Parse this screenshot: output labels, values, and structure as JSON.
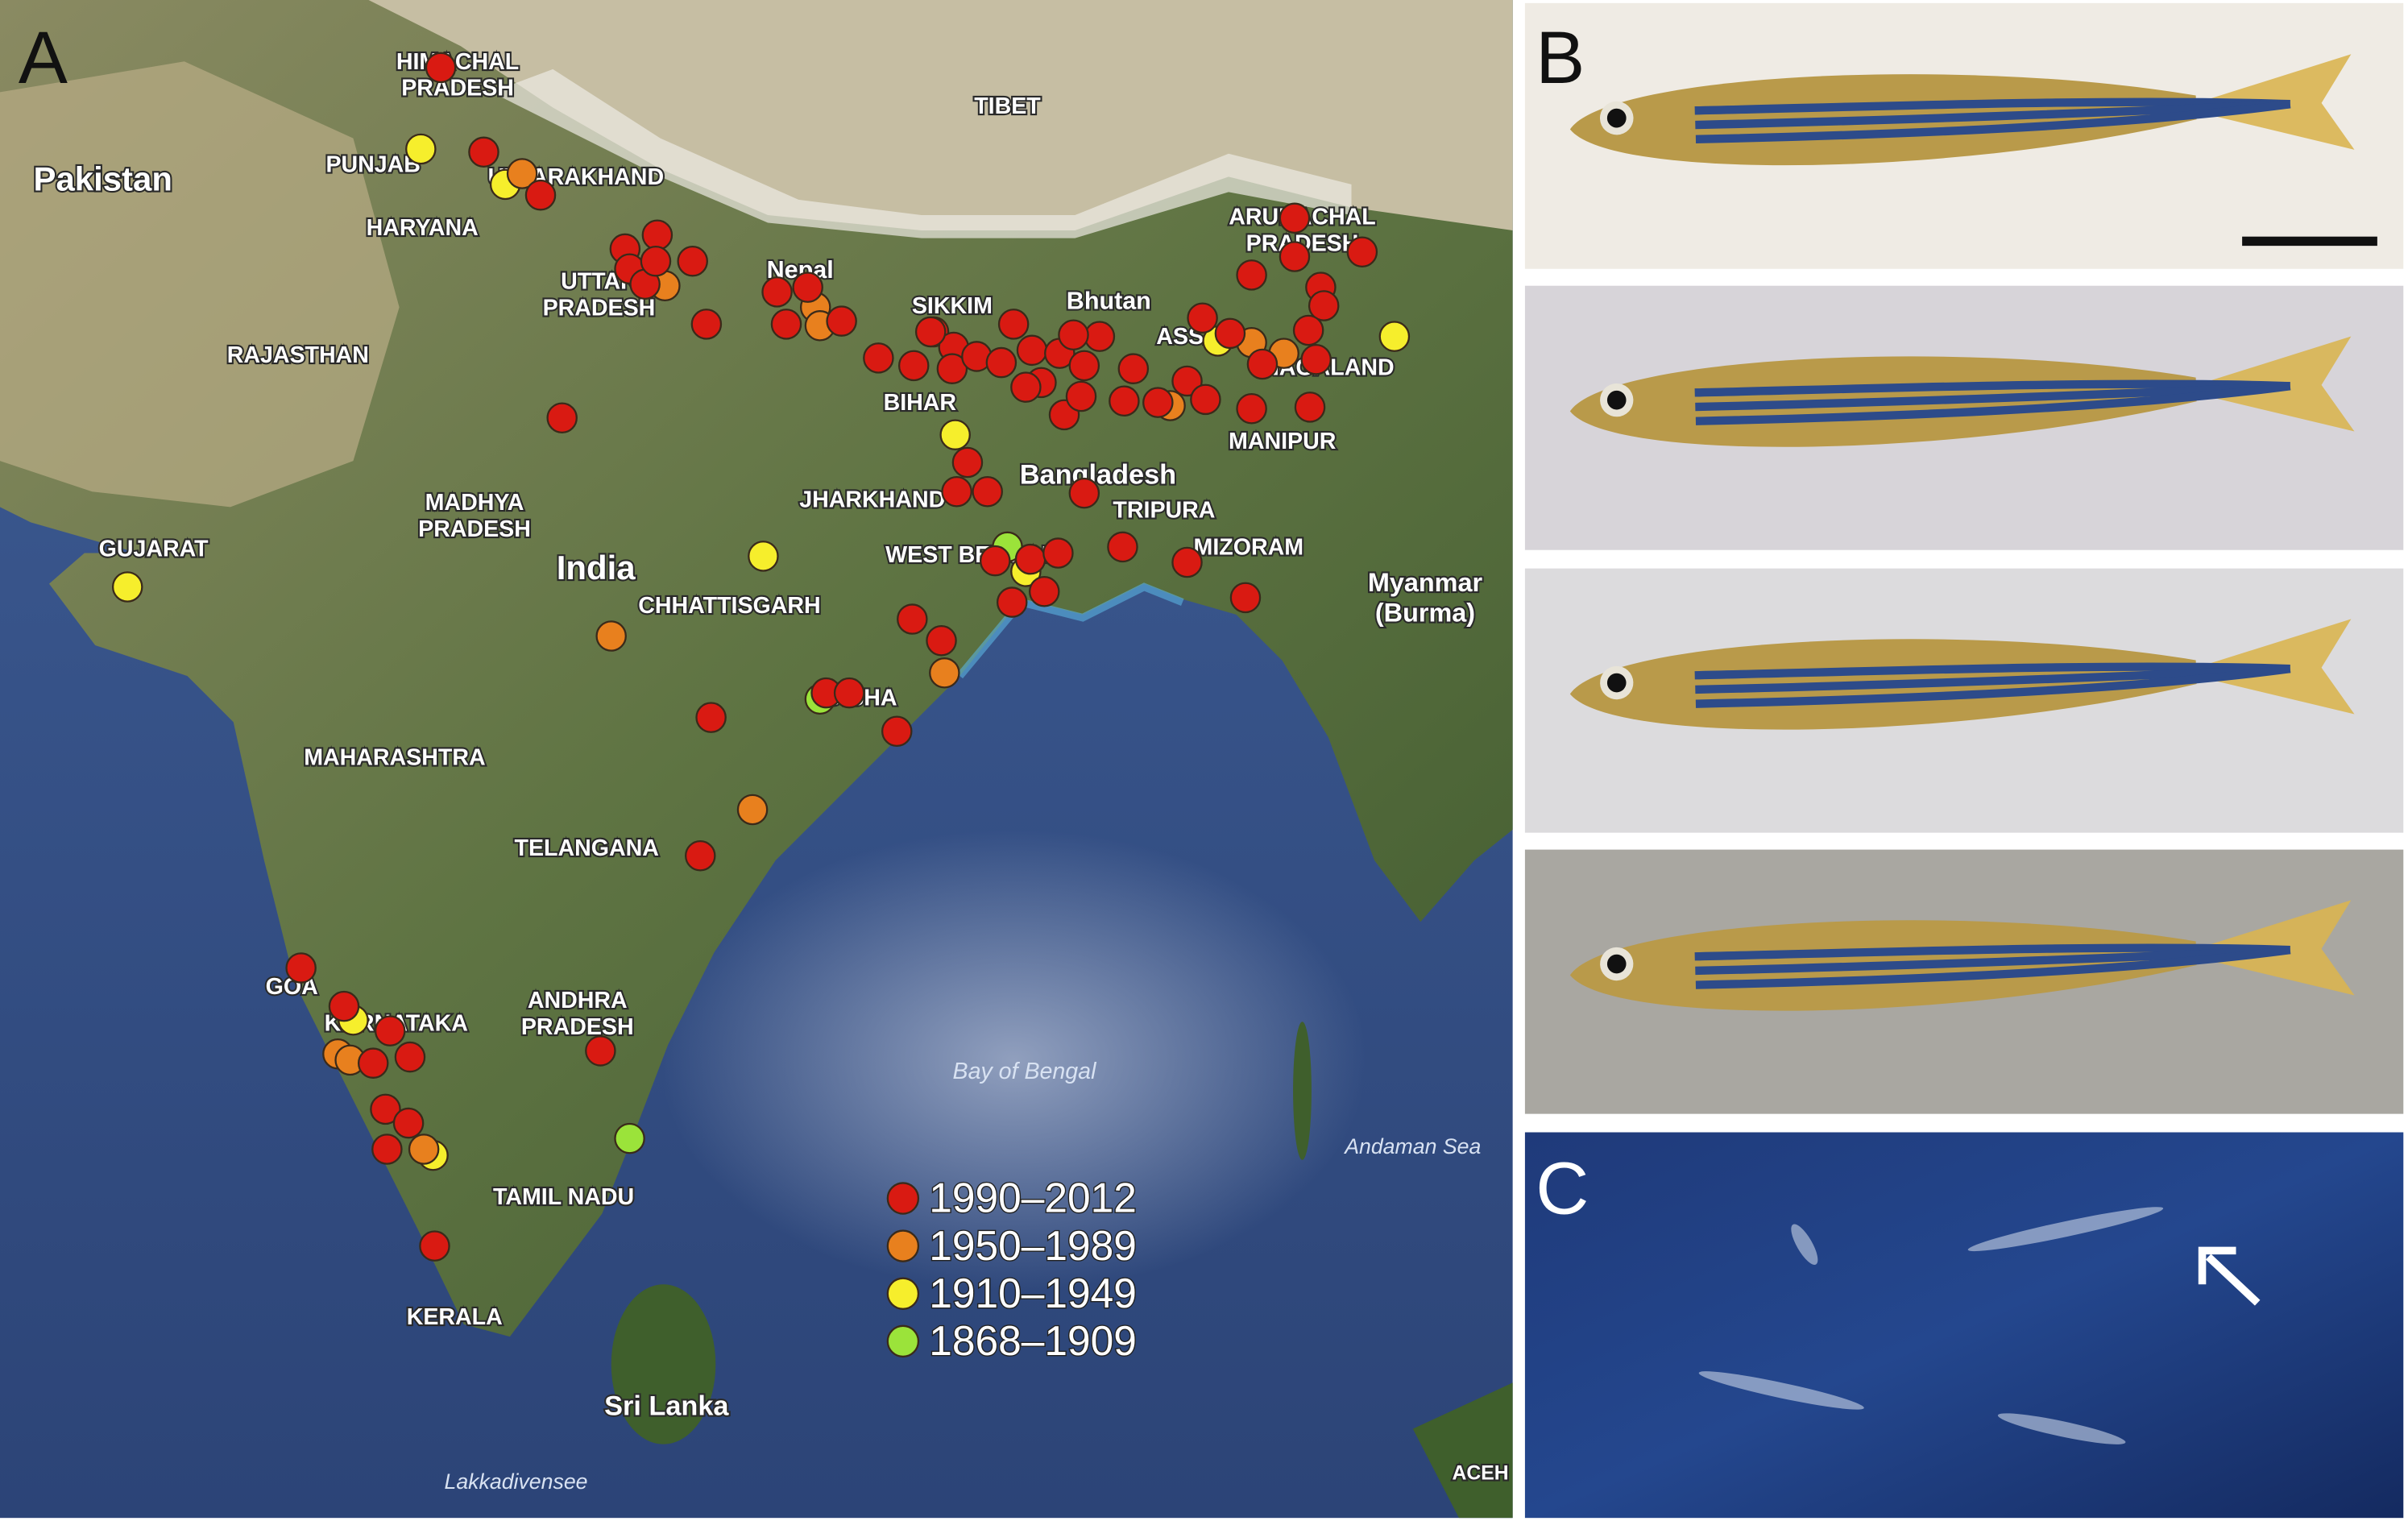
{
  "panel_a": {
    "label": "A",
    "places": [
      {
        "lines": [
          "HIMACHAL",
          "PRADESH"
        ]
      },
      {
        "lines": [
          "Pakistan"
        ]
      },
      {
        "lines": [
          "PUNJAB"
        ]
      },
      {
        "lines": [
          "UTTARAKHAND"
        ]
      },
      {
        "lines": [
          "HARYANA"
        ]
      },
      {
        "lines": [
          "TIBET"
        ]
      },
      {
        "lines": [
          "UTTAR",
          "PRADESH"
        ]
      },
      {
        "lines": [
          "RAJASTHAN"
        ]
      },
      {
        "lines": [
          "Nepal"
        ]
      },
      {
        "lines": [
          "SIKKIM"
        ]
      },
      {
        "lines": [
          "Bhutan"
        ]
      },
      {
        "lines": [
          "ARUNACHAL",
          "PRADESH"
        ]
      },
      {
        "lines": [
          "ASSAM"
        ]
      },
      {
        "lines": [
          "NAGALAND"
        ]
      },
      {
        "lines": [
          "BIHAR"
        ]
      },
      {
        "lines": [
          "MANIPUR"
        ]
      },
      {
        "lines": [
          "Bangladesh"
        ]
      },
      {
        "lines": [
          "JHARKHAND"
        ]
      },
      {
        "lines": [
          "TRIPURA"
        ]
      },
      {
        "lines": [
          "MADHYA",
          "PRADESH"
        ]
      },
      {
        "lines": [
          "GUJARAT"
        ]
      },
      {
        "lines": [
          "WEST BENGAL"
        ]
      },
      {
        "lines": [
          "MIZORAM"
        ]
      },
      {
        "lines": [
          "India"
        ]
      },
      {
        "lines": [
          "CHHATTISGARH"
        ]
      },
      {
        "lines": [
          "Myanmar",
          "(Burma)"
        ]
      },
      {
        "lines": [
          "ODISHA"
        ]
      },
      {
        "lines": [
          "MAHARASHTRA"
        ]
      },
      {
        "lines": [
          "TELANGANA"
        ]
      },
      {
        "lines": [
          "GOA"
        ]
      },
      {
        "lines": [
          "KARNATAKA"
        ]
      },
      {
        "lines": [
          "ANDHRA",
          "PRADESH"
        ]
      },
      {
        "lines": [
          "Bay of Bengal"
        ]
      },
      {
        "lines": [
          "Andaman Sea"
        ]
      },
      {
        "lines": [
          "TAMIL NADU"
        ]
      },
      {
        "lines": [
          "KERALA"
        ]
      },
      {
        "lines": [
          "Sri Lanka"
        ]
      },
      {
        "lines": [
          "Lakkadivensee"
        ]
      },
      {
        "lines": [
          "ACEH"
        ]
      }
    ],
    "legend": [
      {
        "label": "1990–2012",
        "color": "#d91a12"
      },
      {
        "label": "1950–1989",
        "color": "#e8801e"
      },
      {
        "label": "1910–1949",
        "color": "#f6ee2c"
      },
      {
        "label": "1868–1909",
        "color": "#9be33a"
      }
    ]
  },
  "panel_b": {
    "label": "B"
  },
  "panel_c": {
    "label": "C"
  }
}
